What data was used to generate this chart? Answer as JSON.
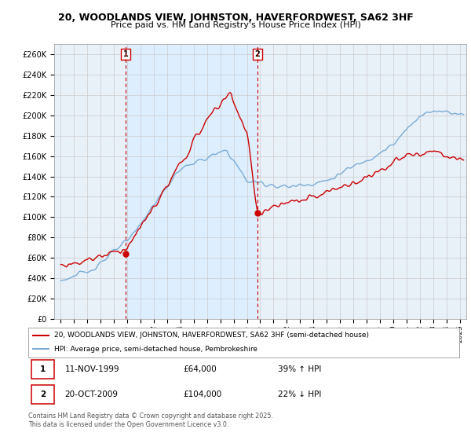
{
  "title": "20, WOODLANDS VIEW, JOHNSTON, HAVERFORDWEST, SA62 3HF",
  "subtitle": "Price paid vs. HM Land Registry's House Price Index (HPI)",
  "ylabel_ticks": [
    "£0",
    "£20K",
    "£40K",
    "£60K",
    "£80K",
    "£100K",
    "£120K",
    "£140K",
    "£160K",
    "£180K",
    "£200K",
    "£220K",
    "£240K",
    "£260K"
  ],
  "ytick_values": [
    0,
    20000,
    40000,
    60000,
    80000,
    100000,
    120000,
    140000,
    160000,
    180000,
    200000,
    220000,
    240000,
    260000
  ],
  "xlim": [
    1994.5,
    2025.5
  ],
  "ylim": [
    0,
    270000
  ],
  "transaction1": {
    "date": 1999.87,
    "price": 64000,
    "label": "1",
    "text": "11-NOV-1999",
    "amount": "£64,000",
    "hpi_pct": "39% ↑ HPI"
  },
  "transaction2": {
    "date": 2009.8,
    "price": 104000,
    "label": "2",
    "text": "20-OCT-2009",
    "amount": "£104,000",
    "hpi_pct": "22% ↓ HPI"
  },
  "legend_line1": "20, WOODLANDS VIEW, JOHNSTON, HAVERFORDWEST, SA62 3HF (semi-detached house)",
  "legend_line2": "HPI: Average price, semi-detached house, Pembrokeshire",
  "footer": "Contains HM Land Registry data © Crown copyright and database right 2025.\nThis data is licensed under the Open Government Licence v3.0.",
  "vline1_x": 1999.87,
  "vline2_x": 2009.8,
  "red_color": "#cc0000",
  "blue_color": "#7aacd6",
  "shade_color": "#ddeeff",
  "bg_color": "#e8f0f8",
  "plot_bg": "#ffffff",
  "grid_color": "#cccccc"
}
